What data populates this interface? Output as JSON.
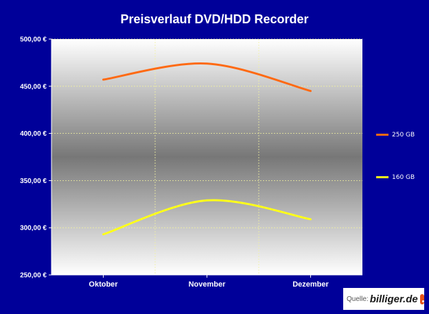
{
  "chart_data": {
    "type": "line",
    "title": "Preisverlauf DVD/HDD Recorder",
    "categories": [
      "Oktober",
      "November",
      "Dezember"
    ],
    "series": [
      {
        "name": "250 GB",
        "values": [
          457,
          474,
          445
        ],
        "color": "#ff6a13"
      },
      {
        "name": "160 GB",
        "values": [
          293,
          329,
          309
        ],
        "color": "#ffff1a"
      }
    ],
    "ylim": [
      250,
      500
    ],
    "yticks": [
      250,
      300,
      350,
      400,
      450,
      500
    ],
    "ytick_labels": [
      "250,00 €",
      "300,00 €",
      "350,00 €",
      "400,00 €",
      "450,00 €",
      "500,00 €"
    ],
    "grid": true,
    "legend": "right",
    "xlabel": "",
    "ylabel": ""
  },
  "source": {
    "label": "Quelle:",
    "brand": "billiger.de"
  }
}
